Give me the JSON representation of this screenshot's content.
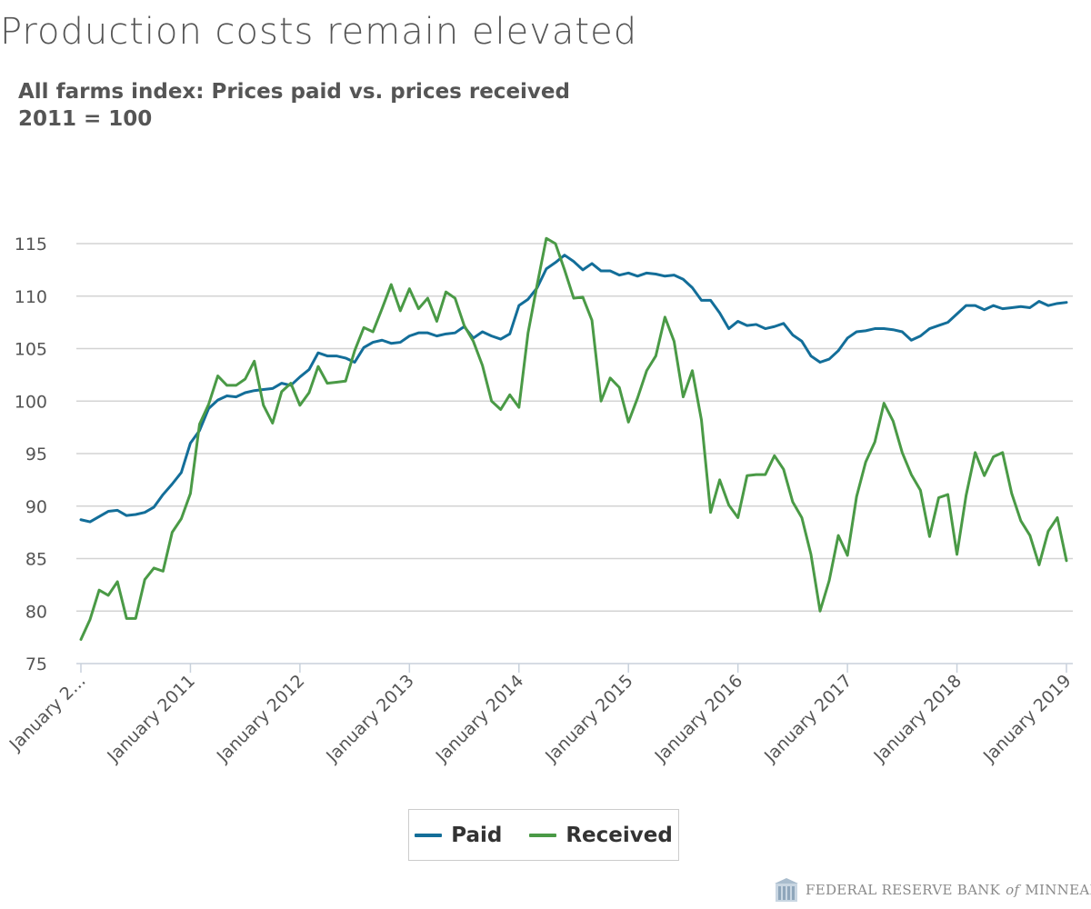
{
  "page": {
    "title": "Production costs remain elevated",
    "subtitle_line1": "All farms index: Prices paid vs. prices received",
    "subtitle_line2": "2011 = 100"
  },
  "footer": {
    "logo_icon": "building-columns-icon",
    "text_before": "FEDERAL RESERVE BANK",
    "text_of": "of",
    "text_after": "MINNEAPOLIS"
  },
  "colors": {
    "paid": "#136e99",
    "received": "#4a9a46",
    "grid": "#d3d3d3",
    "axis_text": "#555555"
  },
  "chart_data": {
    "type": "line",
    "title": "All farms index: Prices paid vs. prices received",
    "subtitle": "2011 = 100",
    "xlabel": "",
    "ylabel": "",
    "x_start": "2010-01",
    "x_end": "2019-01",
    "x_interval": "monthly",
    "ylim": [
      75,
      115
    ],
    "y_ticks": [
      75,
      80,
      85,
      90,
      95,
      100,
      105,
      110,
      115
    ],
    "x_tick_labels": [
      "January 2...",
      "January 2011",
      "January 2012",
      "January 2013",
      "January 2014",
      "January 2015",
      "January 2016",
      "January 2017",
      "January 2018",
      "January 2019"
    ],
    "grid": true,
    "legend_position": "bottom",
    "series": [
      {
        "name": "Paid",
        "values": [
          88.7,
          88.5,
          89.0,
          89.5,
          89.6,
          89.1,
          89.2,
          89.4,
          89.9,
          91.1,
          92.1,
          93.2,
          96.0,
          97.2,
          99.3,
          100.1,
          100.5,
          100.4,
          100.8,
          101.0,
          101.1,
          101.2,
          101.7,
          101.5,
          102.3,
          103.0,
          104.6,
          104.3,
          104.3,
          104.1,
          103.7,
          105.1,
          105.6,
          105.8,
          105.5,
          105.6,
          106.2,
          106.5,
          106.5,
          106.2,
          106.4,
          106.5,
          107.1,
          106.0,
          106.6,
          106.2,
          105.9,
          106.4,
          109.1,
          109.7,
          110.8,
          112.6,
          113.2,
          113.9,
          113.3,
          112.5,
          113.1,
          112.4,
          112.4,
          112.0,
          112.2,
          111.9,
          112.2,
          112.1,
          111.9,
          112.0,
          111.6,
          110.8,
          109.6,
          109.6,
          108.4,
          106.9,
          107.6,
          107.2,
          107.3,
          106.9,
          107.1,
          107.4,
          106.3,
          105.7,
          104.3,
          103.7,
          104.0,
          104.8,
          106.0,
          106.6,
          106.7,
          106.9,
          106.9,
          106.8,
          106.6,
          105.8,
          106.2,
          106.9,
          107.2,
          107.5,
          108.3,
          109.1,
          109.1,
          108.7,
          109.1,
          108.8,
          108.9,
          109.0,
          108.9,
          109.5,
          109.1,
          109.3,
          109.4
        ]
      },
      {
        "name": "Received",
        "values": [
          77.3,
          79.2,
          82.0,
          81.5,
          82.8,
          79.3,
          79.3,
          83.0,
          84.1,
          83.8,
          87.5,
          88.8,
          91.2,
          97.8,
          99.7,
          102.4,
          101.5,
          101.5,
          102.1,
          103.8,
          99.6,
          97.9,
          100.9,
          101.7,
          99.6,
          100.8,
          103.3,
          101.7,
          101.8,
          101.9,
          104.8,
          107.0,
          106.6,
          108.8,
          111.1,
          108.6,
          110.7,
          108.8,
          109.8,
          107.6,
          110.4,
          109.8,
          107.2,
          105.7,
          103.4,
          100.0,
          99.2,
          100.6,
          99.4,
          106.5,
          111.1,
          115.5,
          115.0,
          112.5,
          109.8,
          109.9,
          107.7,
          100.0,
          102.2,
          101.3,
          98.0,
          100.3,
          102.9,
          104.3,
          108.0,
          105.7,
          100.4,
          102.9,
          98.2,
          89.4,
          92.5,
          90.1,
          88.9,
          92.9,
          93.0,
          93.0,
          94.8,
          93.5,
          90.4,
          88.9,
          85.4,
          80.0,
          82.9,
          87.2,
          85.3,
          90.9,
          94.2,
          96.1,
          99.8,
          98.1,
          95.1,
          93.0,
          91.5,
          87.1,
          90.8,
          91.1,
          85.4,
          91.0,
          95.1,
          92.9,
          94.7,
          95.1,
          91.2,
          88.6,
          87.2,
          84.4,
          87.6,
          88.9,
          84.8
        ]
      }
    ]
  }
}
